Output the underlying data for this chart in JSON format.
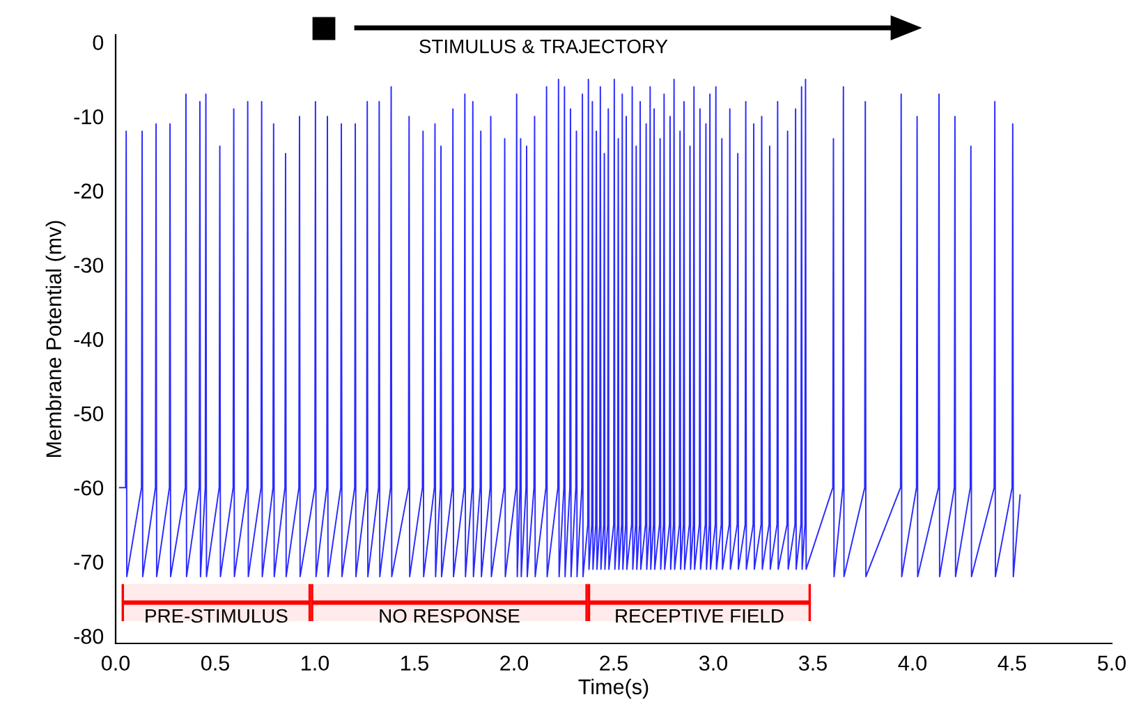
{
  "chart_data": {
    "type": "line",
    "xlabel": "Time(s)",
    "ylabel": "Membrane Potential (mv)",
    "xlim": [
      0,
      5.0
    ],
    "ylim": [
      -81,
      1
    ],
    "xticks": [
      {
        "value": 0,
        "label": "0.0"
      },
      {
        "value": 0.5,
        "label": "0.5"
      },
      {
        "value": 1,
        "label": "1.0"
      },
      {
        "value": 1.5,
        "label": "1.5"
      },
      {
        "value": 2,
        "label": "2.0"
      },
      {
        "value": 2.5,
        "label": "2.5"
      },
      {
        "value": 3,
        "label": "3.0"
      },
      {
        "value": 3.5,
        "label": "3.5"
      },
      {
        "value": 4,
        "label": "4.0"
      },
      {
        "value": 4.5,
        "label": "4.5"
      },
      {
        "value": 5,
        "label": "5.0"
      }
    ],
    "yticks": [
      0,
      -10,
      -20,
      -30,
      -40,
      -50,
      -60,
      -70,
      -80
    ],
    "grid": false,
    "marker": "none",
    "line_style": "solid",
    "annotations": [
      "STIMULUS & TRAJECTORY"
    ],
    "series": [
      {
        "color": "#2a2aff",
        "x": [
          0.02,
          0.05,
          0.053,
          0.056,
          0.13,
          0.133,
          0.136,
          0.2,
          0.203,
          0.206,
          0.27,
          0.273,
          0.276,
          0.35,
          0.353,
          0.356,
          0.42,
          0.423,
          0.426,
          0.45,
          0.453,
          0.456,
          0.52,
          0.523,
          0.526,
          0.59,
          0.593,
          0.596,
          0.66,
          0.663,
          0.666,
          0.73,
          0.733,
          0.736,
          0.79,
          0.793,
          0.796,
          0.85,
          0.853,
          0.856,
          0.92,
          0.923,
          0.926,
          1.0,
          1.003,
          1.006,
          1.06,
          1.063,
          1.066,
          1.13,
          1.133,
          1.136,
          1.2,
          1.203,
          1.206,
          1.26,
          1.263,
          1.266,
          1.32,
          1.323,
          1.326,
          1.38,
          1.383,
          1.386,
          1.47,
          1.473,
          1.476,
          1.54,
          1.543,
          1.546,
          1.6,
          1.603,
          1.606,
          1.63,
          1.633,
          1.636,
          1.69,
          1.693,
          1.696,
          1.75,
          1.753,
          1.756,
          1.79,
          1.793,
          1.796,
          1.83,
          1.833,
          1.836,
          1.88,
          1.883,
          1.886,
          1.95,
          1.953,
          1.956,
          2.01,
          2.013,
          2.016,
          2.03,
          2.033,
          2.036,
          2.06,
          2.063,
          2.066,
          2.1,
          2.103,
          2.106,
          2.16,
          2.163,
          2.166,
          2.22,
          2.223,
          2.226,
          2.25,
          2.253,
          2.256,
          2.28,
          2.283,
          2.286,
          2.31,
          2.313,
          2.316,
          2.34,
          2.343,
          2.346,
          2.37,
          2.373,
          2.376,
          2.39,
          2.393,
          2.396,
          2.41,
          2.413,
          2.416,
          2.43,
          2.433,
          2.436,
          2.45,
          2.453,
          2.456,
          2.47,
          2.473,
          2.476,
          2.5,
          2.503,
          2.506,
          2.52,
          2.523,
          2.526,
          2.54,
          2.543,
          2.546,
          2.56,
          2.563,
          2.566,
          2.59,
          2.593,
          2.596,
          2.61,
          2.613,
          2.616,
          2.63,
          2.633,
          2.636,
          2.66,
          2.663,
          2.666,
          2.68,
          2.683,
          2.686,
          2.7,
          2.703,
          2.706,
          2.73,
          2.733,
          2.736,
          2.75,
          2.753,
          2.756,
          2.78,
          2.783,
          2.786,
          2.8,
          2.803,
          2.806,
          2.83,
          2.833,
          2.836,
          2.85,
          2.853,
          2.856,
          2.88,
          2.883,
          2.886,
          2.9,
          2.903,
          2.906,
          2.93,
          2.933,
          2.936,
          2.96,
          2.963,
          2.966,
          2.98,
          2.983,
          2.986,
          3.01,
          3.013,
          3.016,
          3.04,
          3.043,
          3.046,
          3.08,
          3.083,
          3.086,
          3.12,
          3.123,
          3.126,
          3.16,
          3.163,
          3.166,
          3.2,
          3.203,
          3.206,
          3.24,
          3.243,
          3.246,
          3.28,
          3.283,
          3.286,
          3.32,
          3.323,
          3.326,
          3.37,
          3.373,
          3.376,
          3.41,
          3.413,
          3.416,
          3.44,
          3.443,
          3.446,
          3.46,
          3.463,
          3.466,
          3.6,
          3.603,
          3.606,
          3.65,
          3.653,
          3.656,
          3.76,
          3.763,
          3.766,
          3.94,
          3.943,
          3.946,
          4.02,
          4.023,
          4.026,
          4.13,
          4.133,
          4.136,
          4.21,
          4.213,
          4.216,
          4.29,
          4.293,
          4.296,
          4.41,
          4.413,
          4.416,
          4.5,
          4.503,
          4.506,
          4.54
        ],
        "values": [
          -60,
          -60,
          -12,
          -72,
          -60,
          -12,
          -72,
          -60,
          -11,
          -72,
          -60,
          -11,
          -72,
          -60,
          -7,
          -72,
          -60,
          -8,
          -72,
          -60,
          -7,
          -72,
          -60,
          -14,
          -72,
          -60,
          -9,
          -72,
          -60,
          -8,
          -72,
          -60,
          -8,
          -72,
          -60,
          -11,
          -72,
          -60,
          -15,
          -72,
          -60,
          -10,
          -72,
          -60,
          -8,
          -72,
          -60,
          -10,
          -72,
          -60,
          -11,
          -72,
          -60,
          -11,
          -72,
          -60,
          -8,
          -72,
          -60,
          -8,
          -72,
          -60,
          -6,
          -72,
          -60,
          -10,
          -72,
          -60,
          -12,
          -72,
          -60,
          -11,
          -72,
          -60,
          -14,
          -72,
          -60,
          -9,
          -72,
          -60,
          -7,
          -72,
          -60,
          -8,
          -72,
          -60,
          -12,
          -72,
          -60,
          -10,
          -72,
          -60,
          -13,
          -72,
          -60,
          -7,
          -72,
          -60,
          -13,
          -72,
          -60,
          -14,
          -72,
          -60,
          -10,
          -72,
          -60,
          -6,
          -72,
          -60,
          -5,
          -72,
          -60,
          -6,
          -72,
          -60,
          -9,
          -72,
          -60,
          -12,
          -72,
          -60,
          -7,
          -72,
          -65,
          -5,
          -71,
          -65,
          -8,
          -71,
          -65,
          -12,
          -71,
          -65,
          -6,
          -71,
          -65,
          -15,
          -71,
          -65,
          -9,
          -71,
          -65,
          -5,
          -71,
          -65,
          -13,
          -71,
          -65,
          -7,
          -71,
          -65,
          -10,
          -71,
          -65,
          -6,
          -71,
          -65,
          -14,
          -71,
          -65,
          -8,
          -71,
          -65,
          -11,
          -71,
          -65,
          -6,
          -71,
          -65,
          -9,
          -71,
          -65,
          -13,
          -71,
          -65,
          -7,
          -71,
          -65,
          -10,
          -71,
          -65,
          -5,
          -71,
          -65,
          -12,
          -71,
          -65,
          -8,
          -71,
          -65,
          -14,
          -71,
          -65,
          -6,
          -71,
          -65,
          -9,
          -71,
          -65,
          -11,
          -71,
          -65,
          -7,
          -71,
          -65,
          -6,
          -71,
          -65,
          -13,
          -71,
          -65,
          -9,
          -71,
          -65,
          -15,
          -71,
          -65,
          -8,
          -71,
          -65,
          -11,
          -71,
          -65,
          -10,
          -71,
          -65,
          -14,
          -71,
          -65,
          -8,
          -71,
          -65,
          -12,
          -71,
          -65,
          -9,
          -71,
          -65,
          -6,
          -71,
          -65,
          -5,
          -71,
          -60,
          -13,
          -72,
          -60,
          -6,
          -72,
          -60,
          -8,
          -72,
          -60,
          -7,
          -72,
          -60,
          -10,
          -72,
          -60,
          -7,
          -72,
          -60,
          -10,
          -72,
          -60,
          -14,
          -72,
          -60,
          -8,
          -72,
          -60,
          -11,
          -72,
          -61
        ]
      }
    ],
    "bands": [
      {
        "axis": "x",
        "from": 0.03,
        "to": 0.98,
        "label": "PRE-STIMULUS",
        "color": "#ff0000"
      },
      {
        "axis": "x",
        "from": 0.98,
        "to": 2.37,
        "label": "NO RESPONSE",
        "color": "#ff0000"
      },
      {
        "axis": "x",
        "from": 2.37,
        "to": 3.49,
        "label": "RECEPTIVE FIELD",
        "color": "#ff0000"
      }
    ]
  }
}
